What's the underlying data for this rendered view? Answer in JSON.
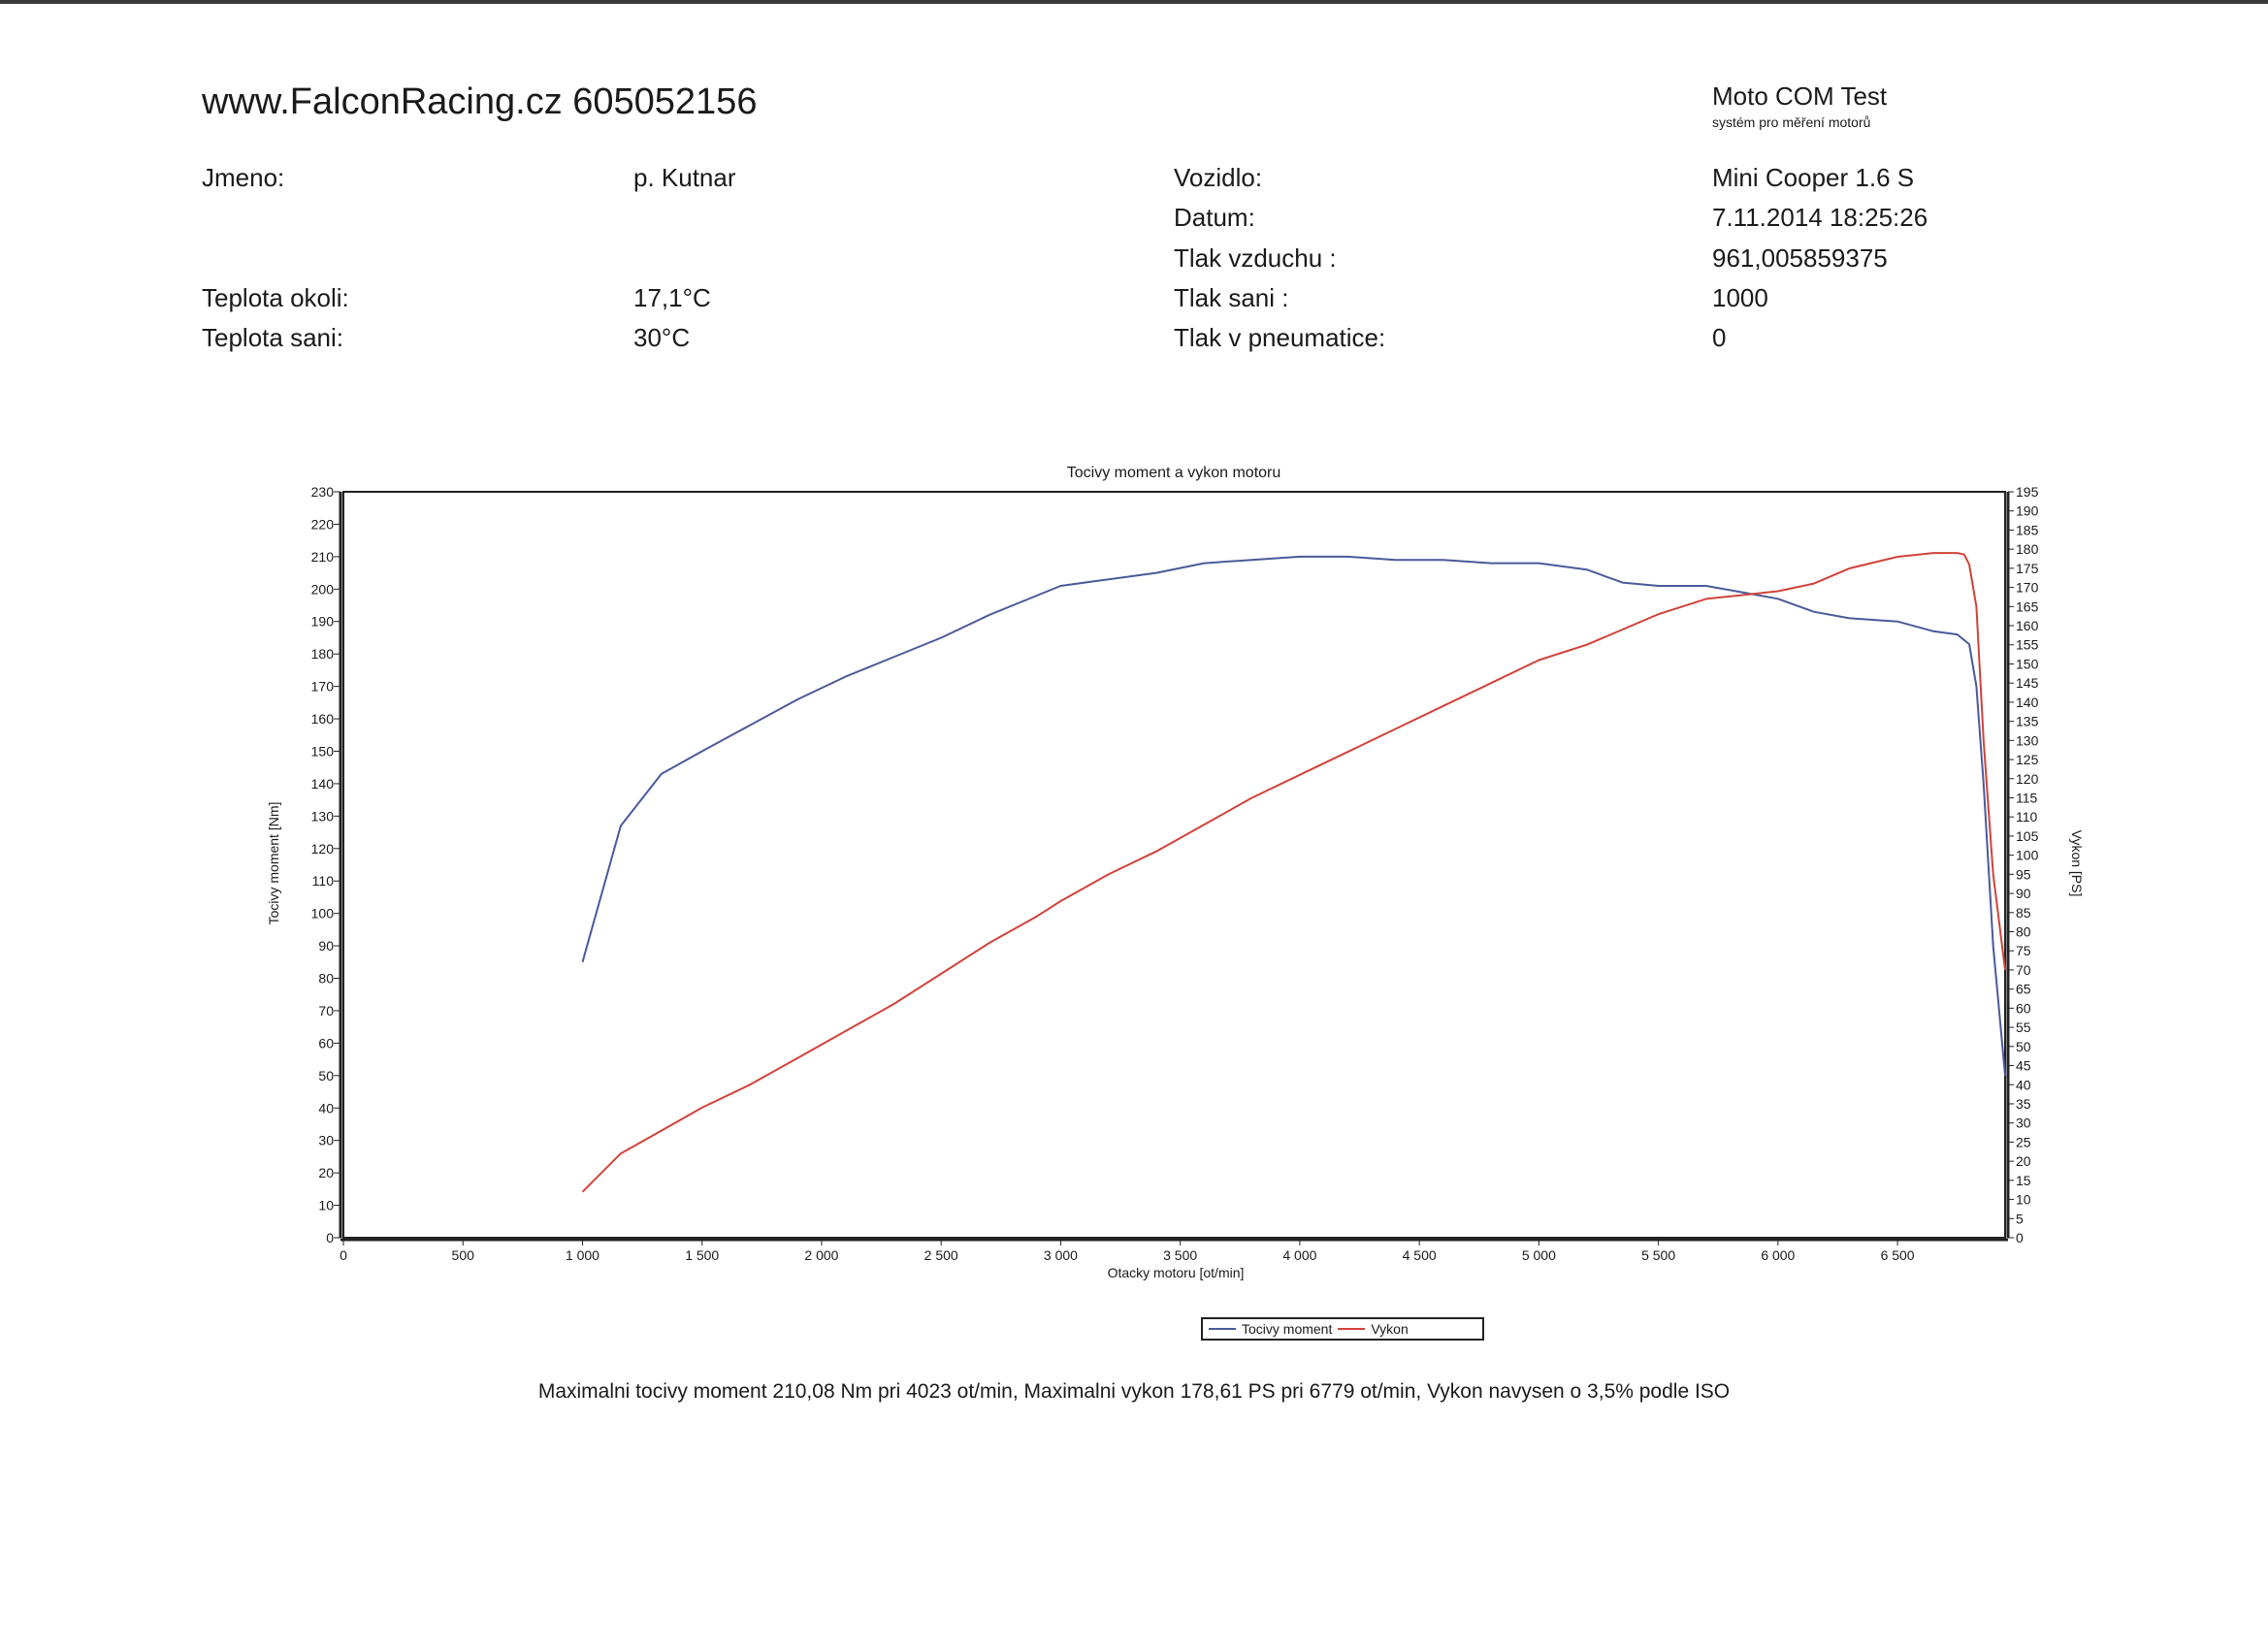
{
  "header": {
    "site": "www.FalconRacing.cz 605052156",
    "app_name": "Moto COM Test",
    "app_sub": "systém pro měření motorů"
  },
  "info": {
    "jmeno_label": "Jmeno:",
    "jmeno_value": "p. Kutnar",
    "teplota_okoli_label": "Teplota okoli:",
    "teplota_okoli_value": "17,1°C",
    "teplota_sani_label": "Teplota sani:",
    "teplota_sani_value": "30°C",
    "vozidlo_label": "Vozidlo:",
    "vozidlo_value": "Mini Cooper 1.6 S",
    "datum_label": "Datum:",
    "datum_value": "7.11.2014 18:25:26",
    "tlak_vzduchu_label": "Tlak vzduchu :",
    "tlak_vzduchu_value": "961,005859375",
    "tlak_sani_label": "Tlak sani :",
    "tlak_sani_value": "1000",
    "tlak_pneu_label": "Tlak v pneumatice:",
    "tlak_pneu_value": "0"
  },
  "chart_data": {
    "type": "line",
    "title": "Tocivy moment a vykon motoru",
    "xlabel": "Otacky motoru [ot/min]",
    "ylabel": "Tocivy moment [Nm]",
    "y2label": "Vykon [PS]",
    "xlim": [
      0,
      6950
    ],
    "ylim": [
      0,
      230
    ],
    "y2lim": [
      0,
      195
    ],
    "x_ticks": [
      0,
      500,
      1000,
      1500,
      2000,
      2500,
      3000,
      3500,
      4000,
      4500,
      5000,
      5500,
      6000,
      6500
    ],
    "x_tick_labels": [
      "0",
      "500",
      "1 000",
      "1 500",
      "2 000",
      "2 500",
      "3 000",
      "3 500",
      "4 000",
      "4 500",
      "5 000",
      "5 500",
      "6 000",
      "6 500"
    ],
    "y_ticks": [
      0,
      10,
      20,
      30,
      40,
      50,
      60,
      70,
      80,
      90,
      100,
      110,
      120,
      130,
      140,
      150,
      160,
      170,
      180,
      190,
      200,
      210,
      220,
      230
    ],
    "y2_ticks": [
      0,
      5,
      10,
      15,
      20,
      25,
      30,
      35,
      40,
      45,
      50,
      55,
      60,
      65,
      70,
      75,
      80,
      85,
      90,
      95,
      100,
      105,
      110,
      115,
      120,
      125,
      130,
      135,
      140,
      145,
      150,
      155,
      160,
      165,
      170,
      175,
      180,
      185,
      190,
      195
    ],
    "grid": false,
    "legend_position": "bottom",
    "series": [
      {
        "name": "Tocivy moment",
        "axis": "left",
        "color": "#4a5a9a",
        "x": [
          1000,
          1160,
          1330,
          1500,
          1700,
          1900,
          2100,
          2300,
          2500,
          2700,
          2900,
          3000,
          3200,
          3400,
          3600,
          3800,
          4000,
          4200,
          4400,
          4600,
          4800,
          5000,
          5200,
          5350,
          5500,
          5700,
          5850,
          6000,
          6150,
          6300,
          6500,
          6650,
          6750,
          6800,
          6830,
          6860,
          6900,
          6950
        ],
        "y": [
          85,
          127,
          143,
          150,
          158,
          166,
          173,
          179,
          185,
          192,
          198,
          201,
          203,
          205,
          208,
          209,
          210,
          210,
          209,
          209,
          208,
          208,
          206,
          202,
          201,
          201,
          199,
          197,
          193,
          191,
          190,
          187,
          186,
          183,
          170,
          140,
          90,
          50
        ]
      },
      {
        "name": "Vykon",
        "axis": "right",
        "color": "#d0433a",
        "x": [
          1000,
          1160,
          1330,
          1500,
          1700,
          1900,
          2100,
          2300,
          2500,
          2700,
          2900,
          3000,
          3200,
          3400,
          3600,
          3800,
          4000,
          4200,
          4400,
          4600,
          4800,
          5000,
          5200,
          5350,
          5500,
          5700,
          5850,
          6000,
          6150,
          6300,
          6500,
          6650,
          6750,
          6779,
          6800,
          6830,
          6860,
          6900,
          6950
        ],
        "y": [
          12,
          22,
          28,
          34,
          40,
          47,
          54,
          61,
          69,
          77,
          84,
          88,
          95,
          101,
          108,
          115,
          121,
          127,
          133,
          139,
          145,
          151,
          155,
          159,
          163,
          167,
          168,
          169,
          171,
          175,
          178,
          179,
          179,
          178.6,
          176,
          165,
          130,
          95,
          70
        ]
      }
    ]
  },
  "summary": "Maximalni tocivy moment 210,08 Nm pri 4023 ot/min,  Maximalni vykon 178,61 PS pri 6779 ot/min,  Vykon navysen o 3,5% podle ISO"
}
